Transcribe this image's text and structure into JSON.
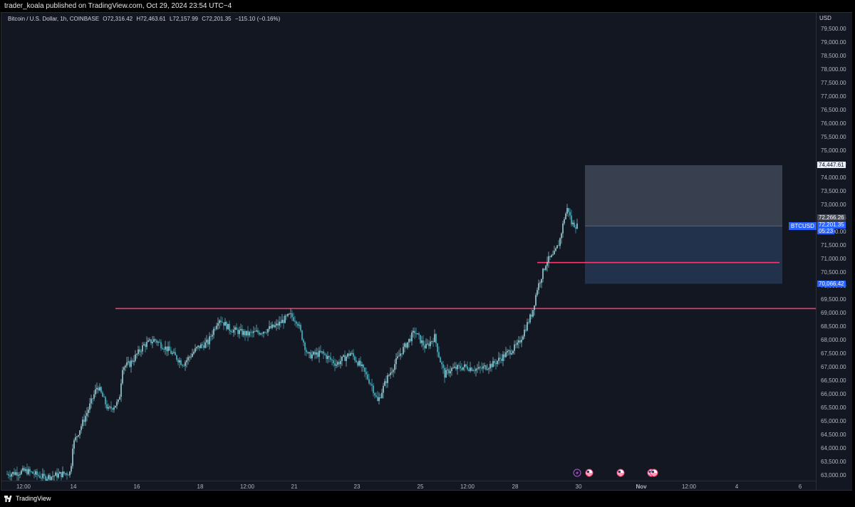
{
  "publisher": {
    "text": "trader_koala published on TradingView.com, Oct 29, 2024 23:54 UTC−4"
  },
  "legend": {
    "symbol": "Bitcoin / U.S. Dollar, 1h, COINBASE",
    "open": "O72,316.42",
    "high": "H72,463.61",
    "low": "L72,157.99",
    "close": "C72,201.35",
    "change": "−115.10 (−0.16%)"
  },
  "price_axis": {
    "currency": "USD",
    "tp_label": "74,447.61",
    "last_label": "72,266.26",
    "current_label": "72,201.35",
    "countdown_label": "05:23",
    "sl_label": "70,066.42",
    "symbol_tag": "BTCUSD"
  },
  "footer": {
    "brand": "TradingView"
  },
  "colors": {
    "background": "#131722",
    "candle": "#b2ebf2",
    "candle_alt": "#4dd0e1",
    "level_line": "#f23a6d",
    "profit_zone": "#3d4453",
    "loss_zone": "#263551",
    "accent": "#2962ff"
  },
  "chart_data": {
    "type": "candlestick",
    "symbol": "Bitcoin / U.S. Dollar",
    "timeframe": "1h",
    "exchange": "COINBASE",
    "ylim": [
      62800,
      79900
    ],
    "y_ticks": [
      "63,000.00",
      "63,500.00",
      "64,000.00",
      "64,500.00",
      "65,000.00",
      "65,500.00",
      "66,000.00",
      "66,500.00",
      "67,000.00",
      "67,500.00",
      "68,000.00",
      "68,500.00",
      "69,000.00",
      "69,500.00",
      "70,000.00",
      "70,500.00",
      "71,000.00",
      "71,500.00",
      "72,000.00",
      "72,500.00",
      "73,000.00",
      "73,500.00",
      "74,000.00",
      "74,500.00",
      "75,000.00",
      "75,500.00",
      "76,000.00",
      "76,500.00",
      "77,000.00",
      "77,500.00",
      "78,000.00",
      "78,500.00",
      "79,000.00",
      "79,500.00"
    ],
    "x_ticks": [
      "12:00",
      "14",
      "16",
      "18",
      "12:00",
      "21",
      "23",
      "25",
      "12:00",
      "28",
      "30",
      "Nov",
      "12:00",
      "4",
      "6"
    ],
    "price_path": [
      [
        0,
        63000
      ],
      [
        35,
        63150
      ],
      [
        60,
        62900
      ],
      [
        97,
        63100
      ],
      [
        100,
        64100
      ],
      [
        120,
        65300
      ],
      [
        135,
        66300
      ],
      [
        150,
        65400
      ],
      [
        165,
        65700
      ],
      [
        170,
        67000
      ],
      [
        180,
        67100
      ],
      [
        200,
        67800
      ],
      [
        215,
        68000
      ],
      [
        235,
        67600
      ],
      [
        255,
        67100
      ],
      [
        275,
        67700
      ],
      [
        290,
        67900
      ],
      [
        305,
        68800
      ],
      [
        320,
        68400
      ],
      [
        345,
        68200
      ],
      [
        365,
        68300
      ],
      [
        385,
        68500
      ],
      [
        405,
        68900
      ],
      [
        415,
        68700
      ],
      [
        430,
        67400
      ],
      [
        450,
        67500
      ],
      [
        470,
        67100
      ],
      [
        490,
        67500
      ],
      [
        505,
        67000
      ],
      [
        520,
        66300
      ],
      [
        528,
        65700
      ],
      [
        540,
        66500
      ],
      [
        560,
        67500
      ],
      [
        580,
        68300
      ],
      [
        595,
        67700
      ],
      [
        608,
        68100
      ],
      [
        615,
        67300
      ],
      [
        622,
        66700
      ],
      [
        630,
        66900
      ],
      [
        650,
        67000
      ],
      [
        670,
        66900
      ],
      [
        690,
        67100
      ],
      [
        710,
        67500
      ],
      [
        725,
        67800
      ],
      [
        735,
        68400
      ],
      [
        745,
        69000
      ],
      [
        752,
        69900
      ],
      [
        760,
        70500
      ],
      [
        765,
        70900
      ],
      [
        775,
        71100
      ],
      [
        783,
        71600
      ],
      [
        790,
        72500
      ],
      [
        795,
        72900
      ],
      [
        800,
        72300
      ],
      [
        808,
        72200
      ]
    ],
    "levels": [
      {
        "price": 69150,
        "x_start": 160,
        "x_end": 1143
      },
      {
        "price": 70850,
        "x_start": 752,
        "x_end": 1092
      }
    ],
    "position": {
      "type": "long",
      "entry": 72201.35,
      "take_profit": 74447.61,
      "stop_loss": 70066.42,
      "x_start": 819,
      "x_end": 1096
    },
    "event_markers": [
      {
        "x": 808,
        "kind": "lightning"
      },
      {
        "x": 825,
        "kind": "us-flag"
      },
      {
        "x": 869,
        "kind": "us-flag"
      },
      {
        "x": 912,
        "kind": "us-flag"
      },
      {
        "x": 916,
        "kind": "us-flag"
      }
    ]
  }
}
